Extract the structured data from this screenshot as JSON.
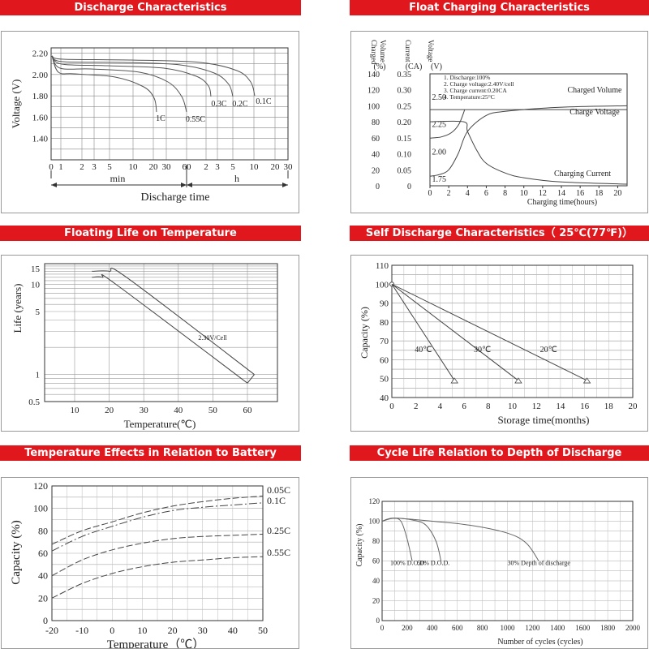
{
  "chart_data": [
    {
      "id": "discharge",
      "type": "line",
      "title": "Discharge Characteristics",
      "xlabel": "Discharge time",
      "ylabel": "Voltage (V)",
      "x_unit_labels": [
        "min",
        "h"
      ],
      "x_ticks": [
        "0",
        "1",
        "2",
        "3",
        "5",
        "10",
        "20",
        "30",
        "60",
        "2",
        "3",
        "5",
        "10",
        "20",
        "30"
      ],
      "y_ticks": [
        "2.20",
        "2.00",
        "1.80",
        "1.60",
        "1.40"
      ],
      "ylim": [
        1.2,
        2.25
      ],
      "grid": true,
      "series": [
        {
          "name": "1C",
          "x": [
            "0",
            "1",
            "5",
            "10",
            "20",
            "30"
          ],
          "y": [
            2.2,
            2.0,
            1.98,
            1.93,
            1.85,
            1.7
          ]
        },
        {
          "name": "0.55C",
          "x": [
            "0",
            "1",
            "10",
            "30",
            "60"
          ],
          "y": [
            2.2,
            2.05,
            2.02,
            1.94,
            1.66
          ]
        },
        {
          "name": "0.3C",
          "x": [
            "0",
            "1",
            "30",
            "60",
            "2h",
            "3h"
          ],
          "y": [
            2.2,
            2.09,
            2.06,
            2.02,
            1.95,
            1.8
          ]
        },
        {
          "name": "0.2C",
          "x": [
            "0",
            "1",
            "60",
            "3h",
            "5h"
          ],
          "y": [
            2.2,
            2.11,
            2.08,
            2.02,
            1.78
          ]
        },
        {
          "name": "0.1C",
          "x": [
            "0",
            "1",
            "3h",
            "5h",
            "10h"
          ],
          "y": [
            2.2,
            2.13,
            2.1,
            2.06,
            1.82
          ]
        }
      ]
    },
    {
      "id": "float",
      "type": "line",
      "title": "Float Charging Characteristics",
      "xlabel": "Charging time(hours)",
      "axis_headers": [
        "Charged\nVolume\n(%)",
        "Current\n(CA)",
        "Voltage\n(V)"
      ],
      "volume_ticks": [
        "140",
        "120",
        "100",
        "80",
        "60",
        "40",
        "20",
        "0"
      ],
      "current_ticks": [
        "0.35",
        "0.30",
        "0.25",
        "0.20",
        "0.15",
        "0.10",
        "0.05",
        "0"
      ],
      "voltage_ticks": [
        "2.50",
        "2.25",
        "2.00",
        "1.75"
      ],
      "x_ticks": [
        "0",
        "2",
        "4",
        "6",
        "8",
        "10",
        "12",
        "14",
        "16",
        "18",
        "20"
      ],
      "conditions": [
        "1. Discharge:100%",
        "2. Charge voltage:2.40V/cell",
        "3. Charge current:0.20CA",
        "4. Temperature:25°C"
      ],
      "series": [
        {
          "name": "Charged Volume",
          "x": [
            0,
            1,
            2,
            3,
            4,
            6,
            8,
            12,
            16,
            21
          ],
          "y": [
            12,
            14,
            20,
            40,
            68,
            88,
            93,
            97,
            99,
            100
          ]
        },
        {
          "name": "Charge Voltage",
          "x": [
            0,
            1,
            2,
            3,
            3.8,
            4,
            10,
            21
          ],
          "y": [
            2.12,
            2.13,
            2.16,
            2.23,
            2.38,
            2.38,
            2.38,
            2.38
          ]
        },
        {
          "name": "Charging Current",
          "x": [
            0,
            3.6,
            4,
            5,
            6,
            8,
            10,
            14,
            21
          ],
          "y": [
            0.2,
            0.2,
            0.17,
            0.11,
            0.07,
            0.04,
            0.025,
            0.012,
            0.005
          ]
        }
      ]
    },
    {
      "id": "float_life",
      "type": "line",
      "title": "Floating Life on Temperature",
      "xlabel": "Temperature(℃)",
      "ylabel": "Life (years)",
      "x_ticks": [
        "10",
        "20",
        "30",
        "40",
        "50",
        "60"
      ],
      "y_ticks": [
        "15",
        "10",
        "5",
        "1",
        "0.5"
      ],
      "scale": "log",
      "annotation": "2.30V/Cell",
      "series": [
        {
          "name": "upper",
          "x": [
            15,
            20,
            25,
            62
          ],
          "y": [
            14,
            14,
            12,
            1
          ]
        },
        {
          "name": "lower",
          "x": [
            15,
            18,
            22,
            60
          ],
          "y": [
            12,
            12,
            10,
            0.8
          ]
        }
      ]
    },
    {
      "id": "self_discharge",
      "type": "line",
      "title": "Self Discharge Characteristics（ 25℃(77℉)）",
      "xlabel": "Storage time(months)",
      "ylabel": "Capacity (%)",
      "x_ticks": [
        "0",
        "2",
        "4",
        "6",
        "8",
        "10",
        "12",
        "14",
        "16",
        "18",
        "20"
      ],
      "y_ticks": [
        "110",
        "100",
        "90",
        "80",
        "70",
        "60",
        "50",
        "40"
      ],
      "xlim": [
        0,
        20
      ],
      "ylim": [
        40,
        110
      ],
      "series": [
        {
          "name": "40℃",
          "x": [
            0,
            5.2
          ],
          "y": [
            100,
            49
          ]
        },
        {
          "name": "30℃",
          "x": [
            0,
            10.5
          ],
          "y": [
            100,
            49
          ]
        },
        {
          "name": "20℃",
          "x": [
            0,
            16.2
          ],
          "y": [
            100,
            49
          ]
        }
      ]
    },
    {
      "id": "temp_capacity",
      "type": "line",
      "title": "Temperature Effects in Relation to Battery Capacity",
      "xlabel": "Temperature（℃）",
      "ylabel": "Capacity (%)",
      "x_ticks": [
        "-20",
        "-10",
        "0",
        "10",
        "20",
        "30",
        "40",
        "50"
      ],
      "y_ticks": [
        "120",
        "100",
        "80",
        "60",
        "40",
        "20",
        "0"
      ],
      "xlim": [
        -20,
        50
      ],
      "ylim": [
        0,
        120
      ],
      "series": [
        {
          "name": "0.05C",
          "x": [
            -20,
            -10,
            0,
            10,
            20,
            30,
            40,
            50
          ],
          "y": [
            68,
            80,
            88,
            96,
            102,
            106,
            109,
            111
          ]
        },
        {
          "name": "0.1C",
          "x": [
            -20,
            -10,
            0,
            10,
            20,
            30,
            40,
            50
          ],
          "y": [
            62,
            75,
            84,
            92,
            98,
            101,
            103,
            105
          ]
        },
        {
          "name": "0.25C",
          "x": [
            -20,
            -10,
            0,
            10,
            20,
            30,
            40,
            50
          ],
          "y": [
            40,
            54,
            63,
            69,
            73,
            75,
            76,
            77
          ]
        },
        {
          "name": "0.55C",
          "x": [
            -20,
            -10,
            0,
            10,
            20,
            30,
            40,
            50
          ],
          "y": [
            20,
            33,
            42,
            48,
            52,
            54,
            56,
            57
          ]
        }
      ]
    },
    {
      "id": "cycle_life",
      "type": "line",
      "title": "Cycle Life Relation to Depth of Discharge",
      "xlabel": "Number of cycles (cycles)",
      "ylabel": "Capacity (%)",
      "x_ticks": [
        "0",
        "200",
        "400",
        "600",
        "800",
        "1000",
        "1200",
        "1400",
        "1600",
        "1800",
        "2000"
      ],
      "y_ticks": [
        "120",
        "100",
        "80",
        "60",
        "40",
        "20",
        "0"
      ],
      "xlim": [
        0,
        2000
      ],
      "ylim": [
        0,
        120
      ],
      "series": [
        {
          "name": "100% D.O.D.",
          "x": [
            0,
            80,
            150,
            200,
            240
          ],
          "y": [
            100,
            103,
            100,
            82,
            60
          ]
        },
        {
          "name": "50% D.O.D.",
          "x": [
            0,
            100,
            250,
            350,
            430,
            470
          ],
          "y": [
            100,
            103,
            101,
            96,
            80,
            60
          ]
        },
        {
          "name": "30% Depth of discharge",
          "x": [
            0,
            100,
            400,
            700,
            1000,
            1150,
            1250
          ],
          "y": [
            100,
            103,
            100,
            96,
            88,
            78,
            60
          ]
        }
      ]
    }
  ]
}
